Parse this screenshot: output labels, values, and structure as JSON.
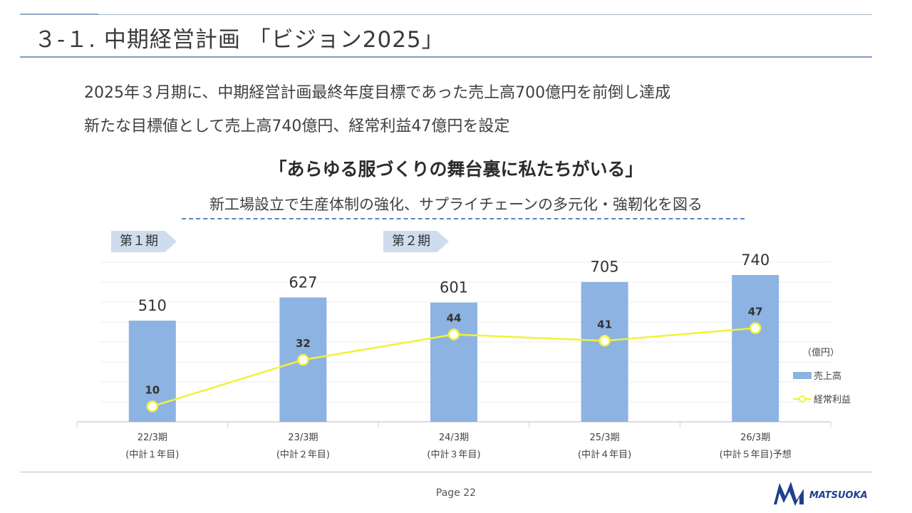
{
  "title": "３-１. 中期経営計画 「ビジョン2025」",
  "summary": {
    "line1": "2025年３月期に、中期経営計画最終年度目標であった売上高700億円を前倒し達成",
    "line2": "新たな目標値として売上高740億円、経常利益47億円を設定"
  },
  "slogan": "「あらゆる服づくりの舞台裏に私たちがいる」",
  "subslogan": "新工場設立で生産体制の強化、サプライチェーンの多元化・強靭化を図る",
  "phases": [
    "第１期",
    "第２期"
  ],
  "chart_data": {
    "type": "bar",
    "categories": [
      [
        "22/3期",
        "(中計１年目)"
      ],
      [
        "23/3期",
        "(中計２年目)"
      ],
      [
        "24/3期",
        "(中計３年目)"
      ],
      [
        "25/3期",
        "(中計４年目)"
      ],
      [
        "26/3期",
        "(中計５年目)予想"
      ]
    ],
    "unit": "（億円）",
    "series": [
      {
        "name": "売上高",
        "type": "bar",
        "values": [
          510,
          627,
          601,
          705,
          740
        ],
        "color": "#8db3e2"
      },
      {
        "name": "経常利益",
        "type": "line",
        "values": [
          10,
          32,
          44,
          41,
          47
        ],
        "color": "#ffff33"
      }
    ],
    "grid": true,
    "legend": "right"
  },
  "footer": {
    "page": "Page 22",
    "logo_text": "MATSUOKA"
  },
  "colors": {
    "rule": "#7f9cbf",
    "bar": "#8db3e2",
    "line": "#ffff33",
    "dash": "#5b87bd",
    "logo": "#1f3f8f"
  }
}
